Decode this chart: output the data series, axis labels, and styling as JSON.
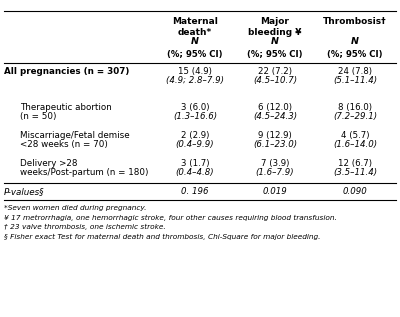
{
  "col_headers_line1": [
    "Maternal\ndeath*",
    "Major\nbleeding ¥",
    "Thrombosis†"
  ],
  "col_headers_line2": [
    "N",
    "N",
    "N"
  ],
  "col_headers_line3": [
    "(%; 95% CI)",
    "(%; 95% CI)",
    "(%; 95% CI)"
  ],
  "rows": [
    {
      "label": "All pregnancies (n = 307)",
      "label2": "",
      "col1a": "15 (4.9)",
      "col1b": "(4.9; 2.8–7.9)",
      "col2a": "22 (7.2)",
      "col2b": "(4.5–10.7)",
      "col3a": "24 (7.8)",
      "col3b": "(5.1–11.4)",
      "bold_label": true,
      "italic_label": false,
      "italic_data": false,
      "indent": false
    },
    {
      "label": "Therapeutic abortion",
      "label2": "(n = 50)",
      "col1a": "3 (6.0)",
      "col1b": "(1.3–16.6)",
      "col2a": "6 (12.0)",
      "col2b": "(4.5–24.3)",
      "col3a": "8 (16.0)",
      "col3b": "(7.2–29.1)",
      "bold_label": false,
      "italic_label": false,
      "italic_data": false,
      "indent": true
    },
    {
      "label": "Miscarriage/Fetal demise",
      "label2": "<28 weeks (n = 70)",
      "col1a": "2 (2.9)",
      "col1b": "(0.4–9.9)",
      "col2a": "9 (12.9)",
      "col2b": "(6.1–23.0)",
      "col3a": "4 (5.7)",
      "col3b": "(1.6–14.0)",
      "bold_label": false,
      "italic_label": false,
      "italic_data": false,
      "indent": true
    },
    {
      "label": "Delivery >28",
      "label2": "weeks/Post-partum (n = 180)",
      "col1a": "3 (1.7)",
      "col1b": "(0.4–4.8)",
      "col2a": "7 (3.9)",
      "col2b": "(1.6–7.9)",
      "col3a": "12 (6.7)",
      "col3b": "(3.5–11.4)",
      "bold_label": false,
      "italic_label": false,
      "italic_data": false,
      "indent": true
    },
    {
      "label": "P-values§",
      "label2": "",
      "col1a": "0. 196",
      "col1b": "",
      "col2a": "0.019",
      "col2b": "",
      "col3a": "0.090",
      "col3b": "",
      "bold_label": false,
      "italic_label": true,
      "italic_data": true,
      "indent": false
    }
  ],
  "footnotes": [
    "*Seven women died during pregnancy.",
    "¥ 17 metrorrhagia, one hemorrhagic stroke, four other causes requiring blood transfusion.",
    "† 23 valve thrombosis, one ischemic stroke.",
    "§ Fisher exact Test for maternal death and thrombosis, Chi-Square for major bleeding."
  ],
  "bg_color": "#ffffff",
  "text_color": "#000000",
  "line_color": "#000000"
}
